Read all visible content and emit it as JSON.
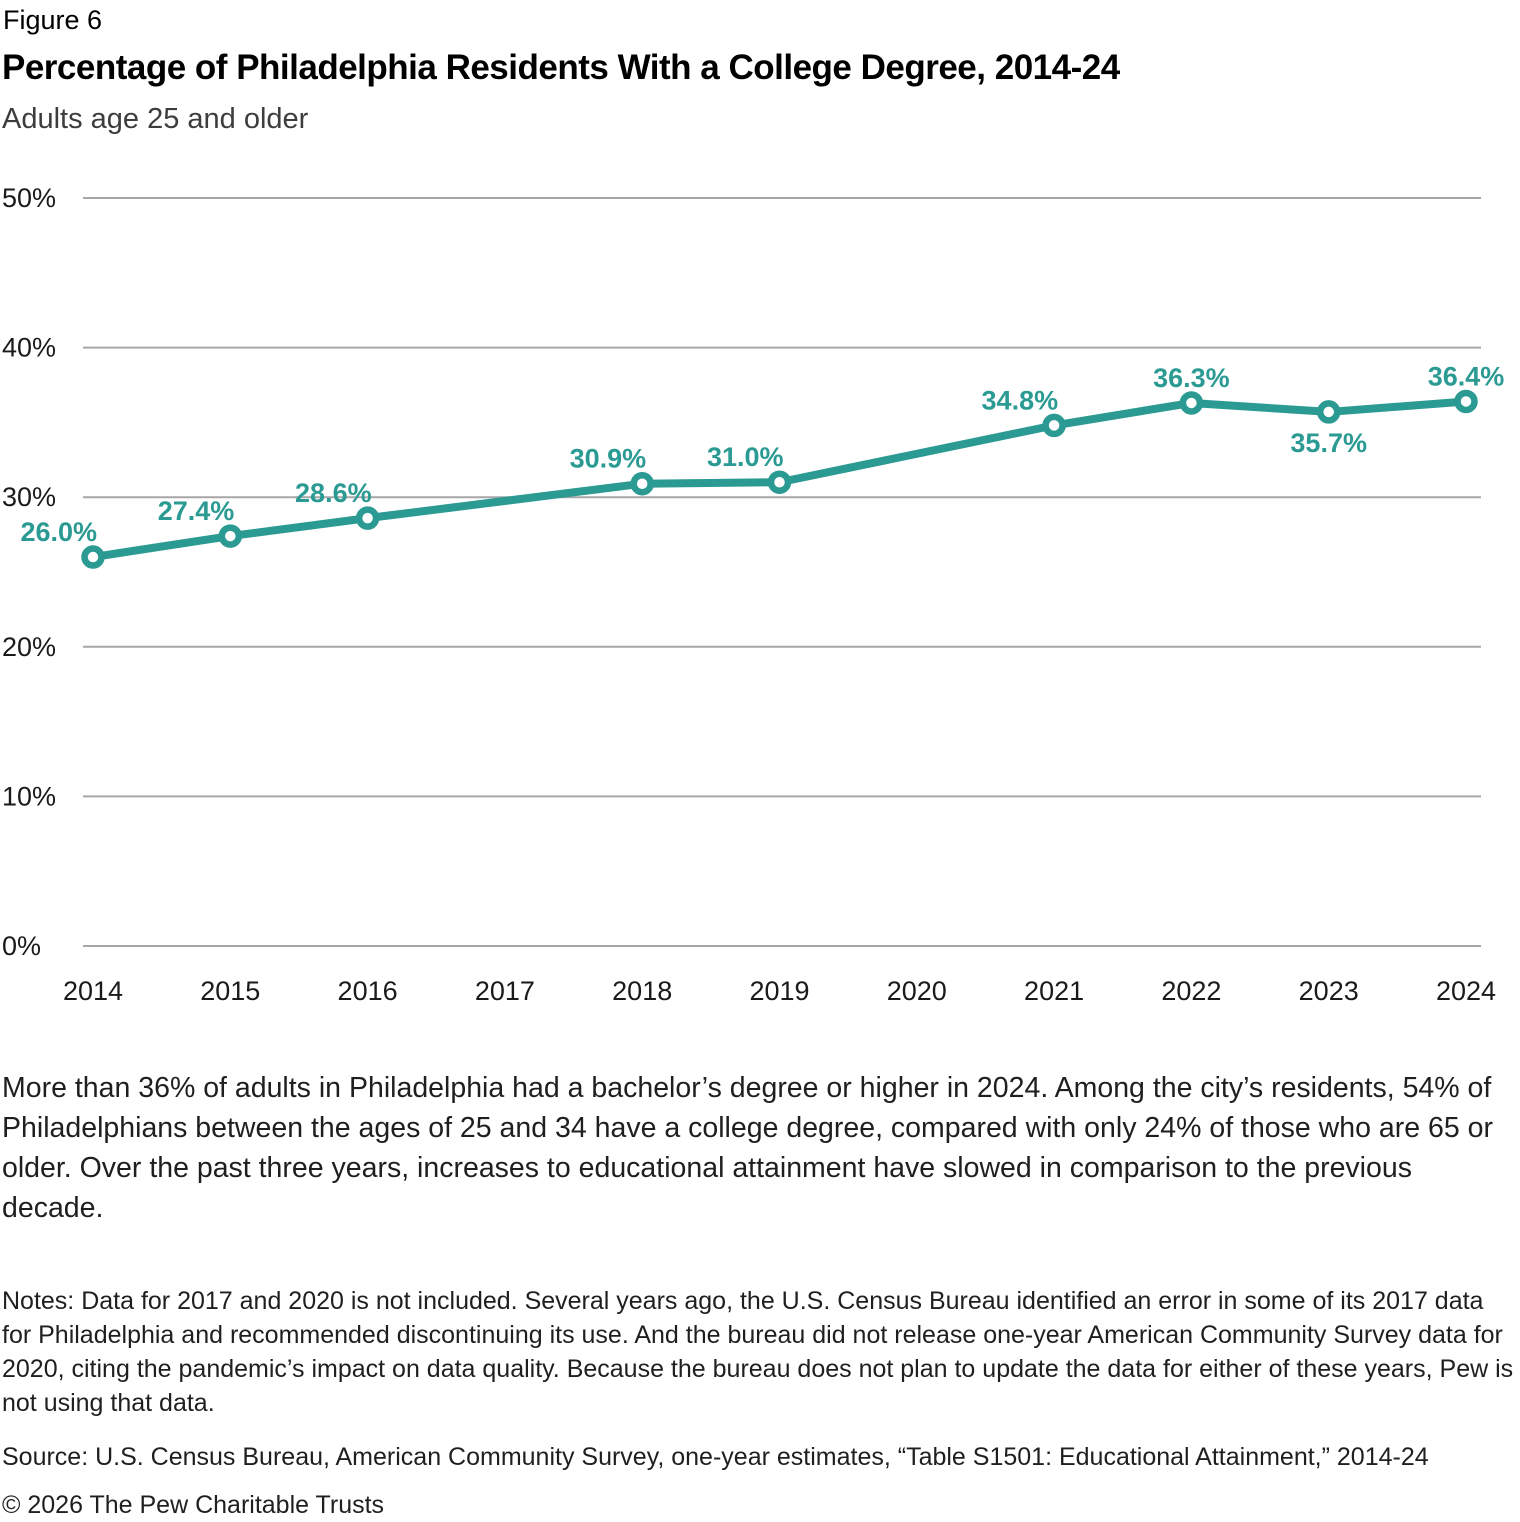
{
  "page": {
    "figure_label": "Figure 6",
    "title": "Percentage of Philadelphia Residents With a College Degree, 2014-24",
    "subtitle": "Adults age 25 and older"
  },
  "chart_data": {
    "type": "line",
    "title": "Percentage of Philadelphia Residents With a College Degree, 2014-24",
    "subtitle": "Adults age 25 and older",
    "xlabel": "",
    "ylabel": "",
    "xlim": [
      2014,
      2024
    ],
    "ylim": [
      0,
      50
    ],
    "grid": true,
    "legend": "none",
    "missing_x": [
      2017,
      2020
    ],
    "line_color": "#2A9A93",
    "grid_color": "#A7A7A7",
    "x_ticks": [
      "2014",
      "2015",
      "2016",
      "2017",
      "2018",
      "2019",
      "2020",
      "2021",
      "2022",
      "2023",
      "2024"
    ],
    "y_ticks": [
      {
        "value": 0,
        "label": "0%"
      },
      {
        "value": 10,
        "label": "10%"
      },
      {
        "value": 20,
        "label": "20%"
      },
      {
        "value": 30,
        "label": "30%"
      },
      {
        "value": 40,
        "label": "40%"
      },
      {
        "value": 50,
        "label": "50%"
      }
    ],
    "series": [
      {
        "name": "Adults age 25 and older with a college degree",
        "points": [
          {
            "x": 2014,
            "y": 26.0,
            "label": "26.0%",
            "label_anchor": "end",
            "label_dy": -16
          },
          {
            "x": 2015,
            "y": 27.4,
            "label": "27.4%",
            "label_anchor": "end",
            "label_dy": -16
          },
          {
            "x": 2016,
            "y": 28.6,
            "label": "28.6%",
            "label_anchor": "end",
            "label_dy": -16
          },
          {
            "x": 2018,
            "y": 30.9,
            "label": "30.9%",
            "label_anchor": "end",
            "label_dy": -16
          },
          {
            "x": 2019,
            "y": 31.0,
            "label": "31.0%",
            "label_anchor": "end",
            "label_dy": -16
          },
          {
            "x": 2021,
            "y": 34.8,
            "label": "34.8%",
            "label_anchor": "end",
            "label_dy": -16
          },
          {
            "x": 2022,
            "y": 36.3,
            "label": "36.3%",
            "label_anchor": "middle",
            "label_dy": -16
          },
          {
            "x": 2023,
            "y": 35.7,
            "label": "35.7%",
            "label_anchor": "middle",
            "label_dy": 40
          },
          {
            "x": 2024,
            "y": 36.4,
            "label": "36.4%",
            "label_anchor": "middle",
            "label_dy": -16
          }
        ]
      }
    ]
  },
  "body_text": "More than 36% of adults in Philadelphia had a bachelor’s degree or higher in 2024. Among the city’s residents, 54% of Philadelphians between the ages of 25 and 34 have a college degree, compared with only 24% of those who are 65 or older. Over the past three years, increases to educational attainment have slowed in comparison to the previous decade.",
  "notes": "Notes: Data for 2017 and 2020 is not included. Several years ago, the U.S. Census Bureau identified an error in some of its 2017 data for Philadelphia and recommended discontinuing its use. And the bureau did not release one-year American Community Survey data for 2020, citing the pandemic’s impact on data quality. Because the bureau does not plan to update the data for either of these years, Pew is not using that data.",
  "source": "Source: U.S. Census Bureau, American Community Survey, one-year estimates, “Table S1501: Educational Attainment,” 2014-24",
  "copyright": "© 2026 The Pew Charitable Trusts"
}
